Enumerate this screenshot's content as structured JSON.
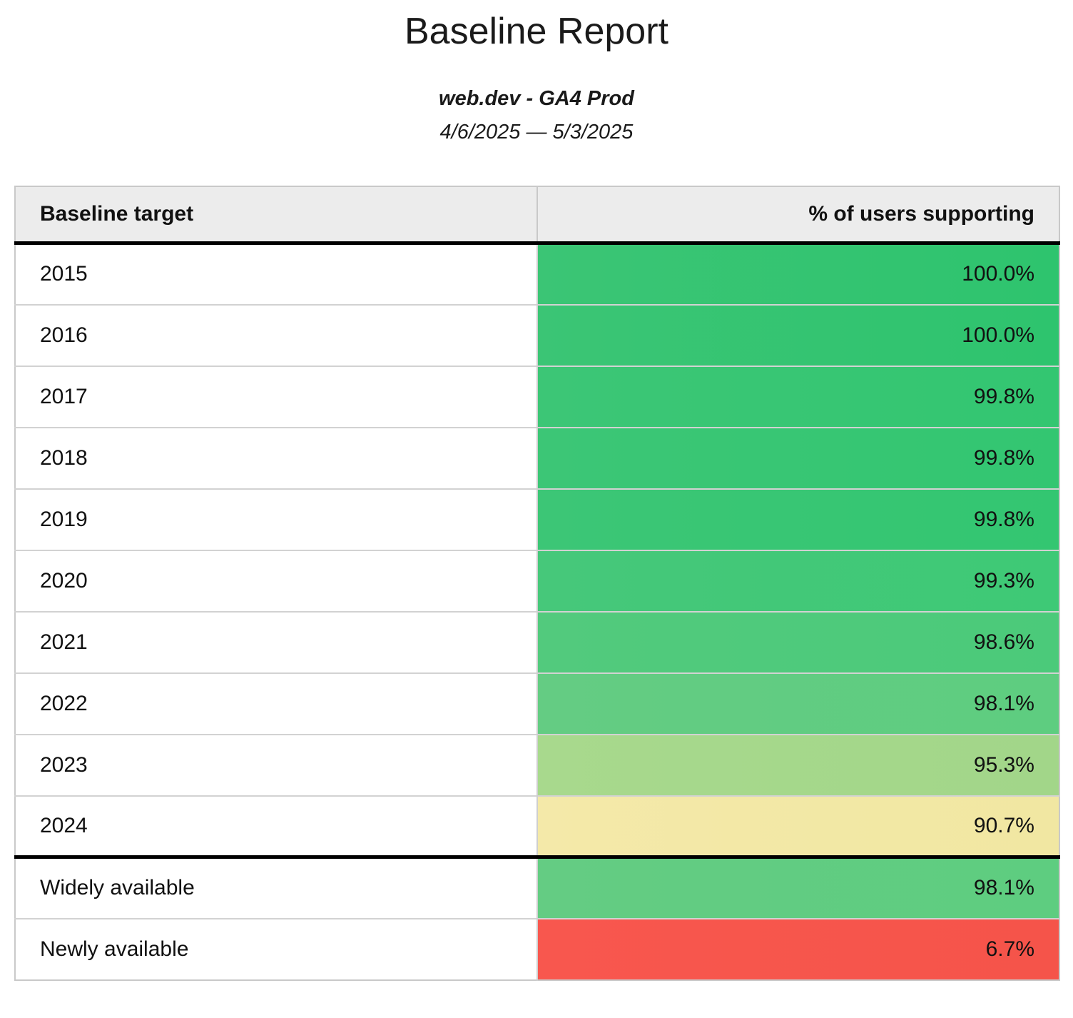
{
  "header": {
    "title": "Baseline Report",
    "property": "web.dev - GA4 Prod",
    "date_range": "4/6/2025 — 5/3/2025"
  },
  "table": {
    "columns": [
      "Baseline target",
      "% of users supporting"
    ],
    "rows": [
      {
        "label": "2015",
        "value": "100.0%",
        "bg_left": "#3bc575",
        "bg_right": "#2ec46e",
        "divider_above": false
      },
      {
        "label": "2016",
        "value": "100.0%",
        "bg_left": "#3bc575",
        "bg_right": "#2ec46e",
        "divider_above": false
      },
      {
        "label": "2017",
        "value": "99.8%",
        "bg_left": "#3cc676",
        "bg_right": "#33c671",
        "divider_above": false
      },
      {
        "label": "2018",
        "value": "99.8%",
        "bg_left": "#3cc676",
        "bg_right": "#33c671",
        "divider_above": false
      },
      {
        "label": "2019",
        "value": "99.8%",
        "bg_left": "#3cc676",
        "bg_right": "#33c671",
        "divider_above": false
      },
      {
        "label": "2020",
        "value": "99.3%",
        "bg_left": "#46c87a",
        "bg_right": "#3ec976",
        "divider_above": false
      },
      {
        "label": "2021",
        "value": "98.6%",
        "bg_left": "#52ca7d",
        "bg_right": "#4bca7a",
        "divider_above": false
      },
      {
        "label": "2022",
        "value": "98.1%",
        "bg_left": "#64cc83",
        "bg_right": "#5ecd80",
        "divider_above": false
      },
      {
        "label": "2023",
        "value": "95.3%",
        "bg_left": "#a8d98d",
        "bg_right": "#a2d689",
        "divider_above": false
      },
      {
        "label": "2024",
        "value": "90.7%",
        "bg_left": "#f4e9a9",
        "bg_right": "#f1e7a2",
        "divider_above": false
      },
      {
        "label": "Widely available",
        "value": "98.1%",
        "bg_left": "#64cc83",
        "bg_right": "#5ecd80",
        "divider_above": true
      },
      {
        "label": "Newly available",
        "value": "6.7%",
        "bg_left": "#f8574e",
        "bg_right": "#f5544a",
        "divider_above": false
      }
    ]
  },
  "palette": {
    "header_background": "#ececec",
    "border_light": "#c9c9c9",
    "border_strong": "#000000",
    "green_high": "#2ec46e",
    "green_mid": "#5ecd80",
    "green_low": "#a2d689",
    "yellow_warn": "#f1e7a2",
    "red_alert": "#f5544a"
  },
  "chart_data": {
    "type": "table",
    "title": "Baseline Report",
    "subtitle": "web.dev - GA4 Prod",
    "date_range": "4/6/2025 — 5/3/2025",
    "columns": [
      "Baseline target",
      "% of users supporting"
    ],
    "categories": [
      "2015",
      "2016",
      "2017",
      "2018",
      "2019",
      "2020",
      "2021",
      "2022",
      "2023",
      "2024",
      "Widely available",
      "Newly available"
    ],
    "values": [
      100.0,
      100.0,
      99.8,
      99.8,
      99.8,
      99.3,
      98.6,
      98.1,
      95.3,
      90.7,
      98.1,
      6.7
    ]
  }
}
